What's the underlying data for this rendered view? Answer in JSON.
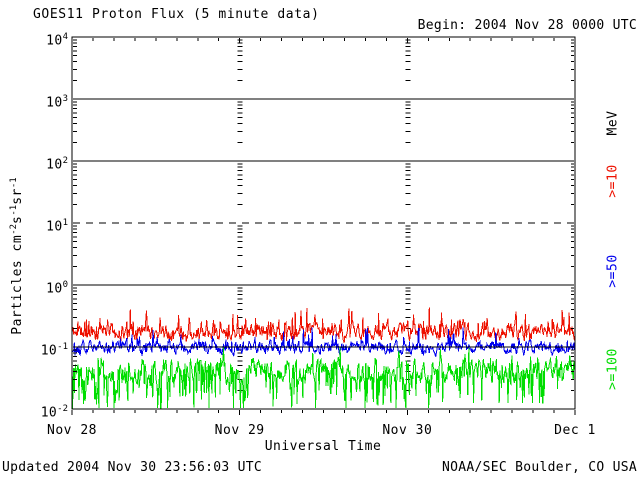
{
  "header": {
    "title": "GOES11 Proton Flux (5 minute data)",
    "begin": "Begin: 2004 Nov 28 0000 UTC"
  },
  "footer": {
    "updated": "Updated 2004 Nov 30 23:56:03 UTC",
    "source": "NOAA/SEC Boulder, CO USA"
  },
  "colors": {
    "background": "#ffffff",
    "axes": "#000000",
    "series_ge10": "#ee1100",
    "series_ge50": "#0000ee",
    "series_ge100": "#00dd00"
  },
  "chart_data": {
    "type": "line",
    "title": "GOES11 Proton Flux (5 minute data)",
    "xlabel": "Universal Time",
    "ylabel": "Particles cm^-2 s^-1 sr^-1",
    "ylabel_parts": [
      {
        "text": "Particles cm"
      },
      {
        "sup": "-2"
      },
      {
        "text": "s"
      },
      {
        "sup": "-1"
      },
      {
        "text": "sr"
      },
      {
        "sup": "-1"
      }
    ],
    "right_axis_title": "MeV",
    "y_scale": "log",
    "ylim": [
      0.01,
      10000
    ],
    "y_decade_exponents": [
      4,
      3,
      2,
      1,
      0,
      -1,
      -2
    ],
    "x_tick_labels": [
      "Nov 28",
      "Nov 29",
      "Nov 30",
      "Dec 1"
    ],
    "x_start": "2004 Nov 28 0000 UTC",
    "x_span_days": 3,
    "cadence": "5 minute",
    "x_minor_tick_hours": 3,
    "grid": {
      "solid_exponents": [
        3,
        2,
        0,
        -1
      ],
      "dashed_exponents": [
        1
      ],
      "day_boundary_minor_dash_columns": true
    },
    "legend_position": "right",
    "series": [
      {
        "id": "ge10",
        "label": ">=10",
        "name": ">=10 MeV",
        "color": "#ee1100",
        "typical_flux": 0.17,
        "approx_range": [
          0.1,
          0.48
        ],
        "synth": {
          "seed": 11,
          "points": 864,
          "base": -0.76,
          "pull": 0.45,
          "jitter": 0.1,
          "spike_prob": 0.16,
          "spike": 0.3,
          "cap": -0.31,
          "floor": -1.02
        }
      },
      {
        "id": "ge50",
        "label": ">=50",
        "name": ">=50 MeV",
        "color": "#0000ee",
        "typical_flux": 0.1,
        "approx_range": [
          0.055,
          0.25
        ],
        "synth": {
          "seed": 29,
          "points": 864,
          "base": -1.01,
          "pull": 0.45,
          "jitter": 0.085,
          "spike_prob": 0.1,
          "spike": 0.24,
          "cap": -0.6,
          "floor": -1.28
        }
      },
      {
        "id": "ge100",
        "label": ">=100",
        "name": ">=100 MeV",
        "color": "#00dd00",
        "typical_flux": 0.04,
        "approx_range": [
          0.011,
          0.1
        ],
        "synth": {
          "seed": 53,
          "points": 864,
          "base": -1.4,
          "pull": 0.4,
          "jitter": 0.14,
          "spike_prob": 0.08,
          "spike": 0.26,
          "cap": -1.0,
          "floor": -1.98,
          "floor_late": -1.9,
          "late_t": 0.73,
          "dip_prob": 0.32,
          "dip_prob_late": 0.16,
          "dip": 0.62
        }
      }
    ]
  }
}
